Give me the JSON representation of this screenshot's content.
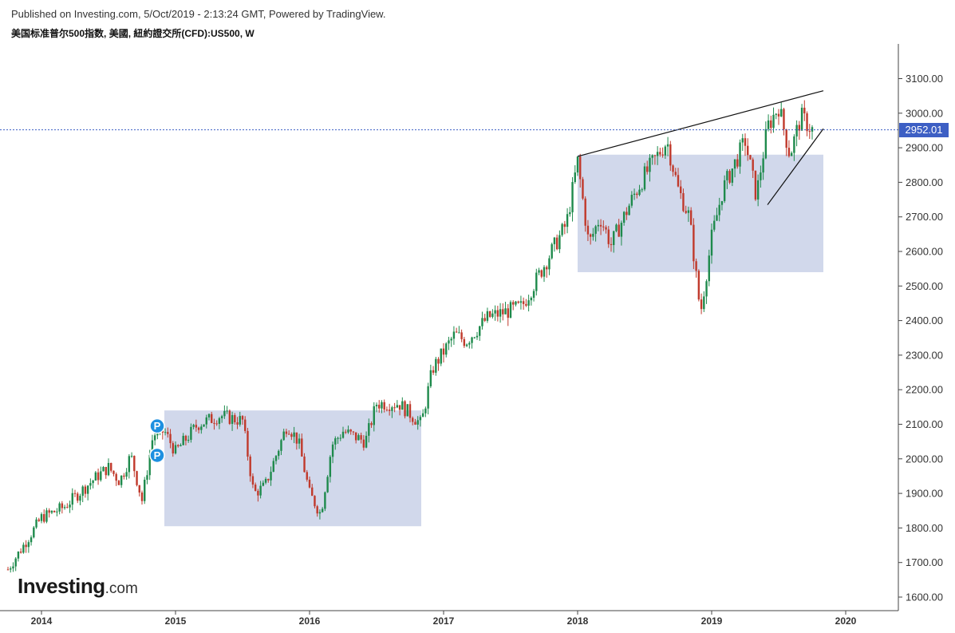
{
  "header": {
    "published": "Published on Investing.com, 5/Oct/2019 - 2:13:24 GMT, Powered by TradingView.",
    "instrument": "美国标准普尔500指数, 美國, 紐約證交所(CFD):US500, W"
  },
  "logo": {
    "main": "Investing",
    "suffix": ".com"
  },
  "marker_label": "P",
  "current_price_label": "2952.01",
  "colors": {
    "up": "#1e8a4c",
    "down": "#c0392b",
    "box": "#cfd6ea",
    "badge": "#3d5fc4",
    "marker": "#1e90e0"
  },
  "chart_data": {
    "type": "candlestick",
    "title": "美国标准普尔500指数, 美國, 紐約證交所(CFD):US500, W",
    "xlabel": "",
    "ylabel": "",
    "xlim": [
      "2013-10",
      "2020-04"
    ],
    "ylim": [
      1560,
      3200
    ],
    "y_ticks": [
      "3100.00",
      "3000.00",
      "2900.00",
      "2800.00",
      "2700.00",
      "2600.00",
      "2500.00",
      "2400.00",
      "2300.00",
      "2200.00",
      "2100.00",
      "2000.00",
      "1900.00",
      "1800.00",
      "1700.00",
      "1600.00"
    ],
    "x_ticks": [
      "2014",
      "2015",
      "2016",
      "2017",
      "2018",
      "2019",
      "2020"
    ],
    "current_price": 2952.01,
    "anchors": [
      [
        "2013-10",
        1680
      ],
      [
        "2014-01",
        1830
      ],
      [
        "2014-03",
        1860
      ],
      [
        "2014-06",
        1950
      ],
      [
        "2014-07",
        1975
      ],
      [
        "2014-08",
        1935
      ],
      [
        "2014-09",
        2010
      ],
      [
        "2014-10",
        1880
      ],
      [
        "2014-11",
        2070
      ],
      [
        "2014-12",
        2080
      ],
      [
        "2015-01",
        2020
      ],
      [
        "2015-03",
        2100
      ],
      [
        "2015-05",
        2125
      ],
      [
        "2015-07",
        2110
      ],
      [
        "2015-08",
        1900
      ],
      [
        "2015-09",
        1920
      ],
      [
        "2015-11",
        2100
      ],
      [
        "2015-12",
        2050
      ],
      [
        "2016-01",
        1900
      ],
      [
        "2016-02",
        1840
      ],
      [
        "2016-03",
        2040
      ],
      [
        "2016-04",
        2080
      ],
      [
        "2016-06",
        2050
      ],
      [
        "2016-07",
        2160
      ],
      [
        "2016-09",
        2160
      ],
      [
        "2016-11",
        2100
      ],
      [
        "2016-12",
        2260
      ],
      [
        "2017-02",
        2360
      ],
      [
        "2017-03",
        2340
      ],
      [
        "2017-05",
        2410
      ],
      [
        "2017-08",
        2440
      ],
      [
        "2017-10",
        2560
      ],
      [
        "2017-12",
        2680
      ],
      [
        "2018-01",
        2860
      ],
      [
        "2018-02",
        2620
      ],
      [
        "2018-03",
        2700
      ],
      [
        "2018-04",
        2620
      ],
      [
        "2018-06",
        2760
      ],
      [
        "2018-07",
        2820
      ],
      [
        "2018-09",
        2920
      ],
      [
        "2018-10",
        2780
      ],
      [
        "2018-11",
        2700
      ],
      [
        "2018-12",
        2420
      ],
      [
        "2019-01",
        2640
      ],
      [
        "2019-02",
        2780
      ],
      [
        "2019-04",
        2920
      ],
      [
        "2019-05",
        2760
      ],
      [
        "2019-06",
        2960
      ],
      [
        "2019-07",
        3020
      ],
      [
        "2019-08",
        2880
      ],
      [
        "2019-09",
        2990
      ],
      [
        "2019-10",
        2952
      ]
    ],
    "shaded_ranges": [
      {
        "from": "2014-12",
        "to": "2016-11",
        "low": 1805,
        "high": 2140
      },
      {
        "from": "2018-01",
        "to": "2019-11",
        "low": 2540,
        "high": 2880
      }
    ],
    "trend_lines": [
      {
        "from": [
          "2018-01",
          2875
        ],
        "to": [
          "2019-11",
          3065
        ]
      },
      {
        "from": [
          "2019-06",
          2735
        ],
        "to": [
          "2019-11",
          2955
        ]
      }
    ],
    "markers": [
      {
        "date": "2014-11",
        "value": 2095,
        "label": "P"
      },
      {
        "date": "2014-11",
        "value": 2010,
        "label": "P"
      }
    ]
  }
}
